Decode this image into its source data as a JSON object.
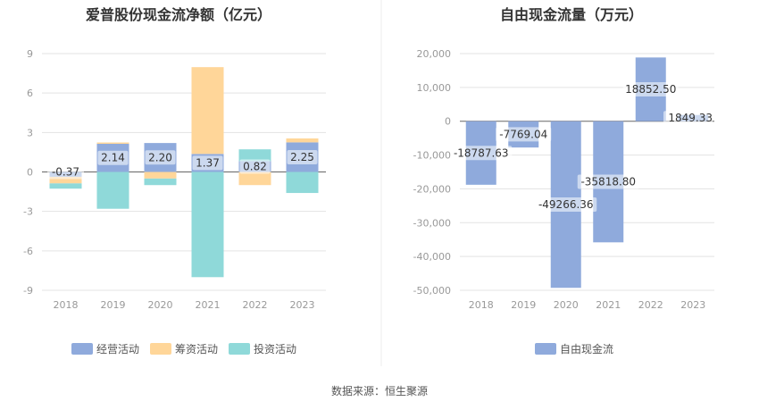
{
  "source": "数据来源：恒生聚源",
  "colors": {
    "operating": "#8faadc",
    "financing": "#ffd699",
    "investing": "#8fd9d9",
    "fcf": "#8faadc",
    "axis": "#666666",
    "grid": "#e3e3e3"
  },
  "chart_data": [
    {
      "type": "bar",
      "stacked": true,
      "title": "爱普股份现金流净额（亿元）",
      "categories": [
        "2018",
        "2019",
        "2020",
        "2021",
        "2022",
        "2023"
      ],
      "ylim": [
        -9,
        9
      ],
      "yticks": [
        9,
        6,
        3,
        0,
        -3,
        -6,
        -9
      ],
      "grid": true,
      "legend_position": "bottom",
      "series": [
        {
          "name": "经营活动",
          "values": [
            -0.37,
            2.14,
            2.2,
            1.37,
            0.82,
            2.25
          ],
          "labels": [
            "-0.37",
            "2.14",
            "2.20",
            "1.37",
            "0.82",
            "2.25"
          ]
        },
        {
          "name": "筹资活动",
          "values": [
            -0.5,
            0.1,
            -0.5,
            6.6,
            -1.0,
            0.3
          ]
        },
        {
          "name": "投资活动",
          "values": [
            -0.4,
            -2.8,
            -0.5,
            -8.0,
            0.9,
            -1.6
          ]
        }
      ]
    },
    {
      "type": "bar",
      "title": "自由现金流量（万元）",
      "categories": [
        "2018",
        "2019",
        "2020",
        "2021",
        "2022",
        "2023"
      ],
      "ylim": [
        -50000,
        20000
      ],
      "yticks": [
        "20,000",
        "10,000",
        "0",
        "-10,000",
        "-20,000",
        "-30,000",
        "-40,000",
        "-50,000"
      ],
      "grid": true,
      "legend_position": "bottom",
      "series": [
        {
          "name": "自由现金流",
          "values": [
            -18787.63,
            -7769.04,
            -49266.36,
            -35818.8,
            18852.5,
            1849.33
          ],
          "labels": [
            "-18787.63",
            "-7769.04",
            "-49266.36",
            "-35818.80",
            "18852.50",
            "1849.33"
          ]
        }
      ]
    }
  ]
}
